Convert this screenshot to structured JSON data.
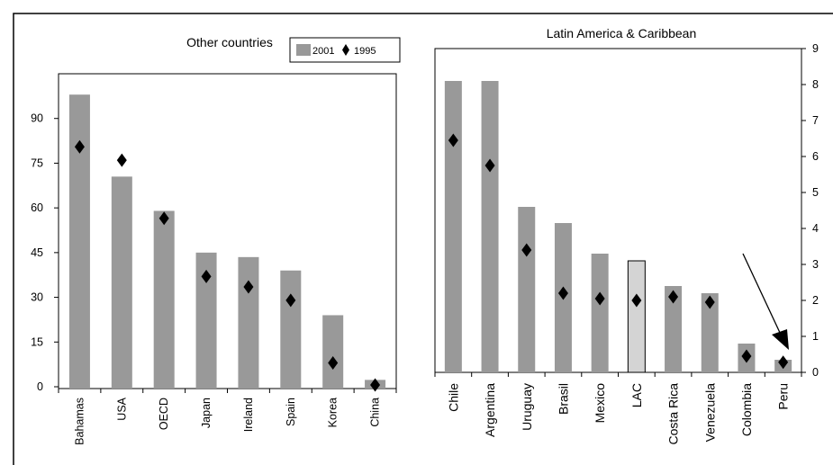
{
  "chart_data": [
    {
      "type": "bar",
      "title": "Other countries",
      "categories": [
        "Bahamas",
        "USA",
        "OECD",
        "Japan",
        "Ireland",
        "Spain",
        "Korea",
        "China"
      ],
      "series": [
        {
          "name": "2001",
          "kind": "bar",
          "values": [
            98,
            70.5,
            59,
            45,
            43.5,
            39,
            24,
            2.3
          ]
        },
        {
          "name": "1995",
          "kind": "marker",
          "values": [
            80.5,
            76,
            56.5,
            37,
            33.5,
            29,
            8,
            0.6
          ]
        }
      ],
      "yticks": [
        "0",
        "15",
        "30",
        "45",
        "60",
        "75",
        "90"
      ],
      "ylim": [
        0,
        105
      ],
      "legend": "top-right",
      "grid": false,
      "colors": {
        "bar": "#999999",
        "marker": "#000000"
      }
    },
    {
      "type": "bar",
      "title": "Latin America & Caribbean",
      "categories": [
        "Chile",
        "Argentina",
        "Uruguay",
        "Brasil",
        "Mexico",
        "LAC",
        "Costa Rica",
        "Venezuela",
        "Colombia",
        "Peru"
      ],
      "series": [
        {
          "kind": "bar",
          "values": [
            8.1,
            8.1,
            4.6,
            4.15,
            3.3,
            3.1,
            2.4,
            2.2,
            0.8,
            0.35
          ]
        },
        {
          "kind": "marker",
          "values": [
            6.45,
            5.75,
            3.4,
            2.2,
            2.05,
            2.0,
            2.1,
            1.95,
            0.45,
            0.28
          ]
        }
      ],
      "highlight": "LAC",
      "yticks": [
        "0",
        "1",
        "2",
        "3",
        "4",
        "5",
        "6",
        "7",
        "8",
        "9"
      ],
      "ylim": [
        0,
        9
      ],
      "yaxis_side": "right",
      "annotation": "arrow pointing to Peru",
      "grid": false,
      "colors": {
        "bar": "#999999",
        "highlight": "#d4d4d4",
        "marker": "#000000"
      }
    }
  ]
}
